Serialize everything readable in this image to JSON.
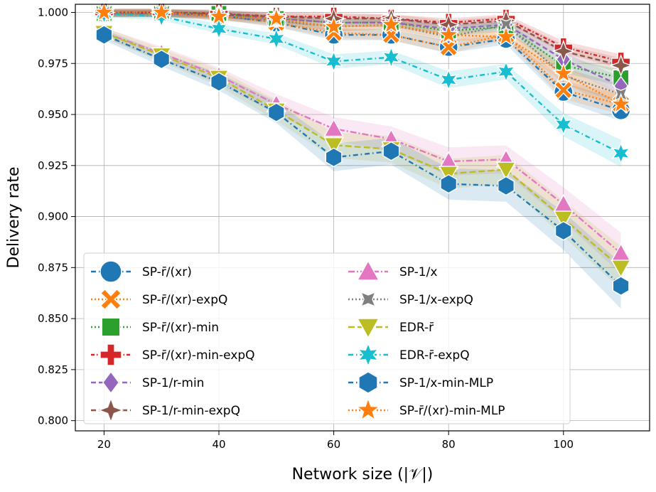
{
  "chart_data": {
    "type": "line",
    "xlabel": "Network size (|𝒱|)",
    "ylabel": "Delivery rate",
    "xlim": [
      15,
      115
    ],
    "ylim": [
      0.795,
      1.004
    ],
    "xticks": [
      20,
      40,
      60,
      80,
      100
    ],
    "yticks": [
      0.8,
      0.825,
      0.85,
      0.875,
      0.9,
      0.925,
      0.95,
      0.975,
      1.0
    ],
    "ytick_labels": [
      "0.800",
      "0.825",
      "0.850",
      "0.875",
      "0.900",
      "0.925",
      "0.950",
      "0.975",
      "1.000"
    ],
    "grid": true,
    "legend_position": "lower-left",
    "x": [
      20,
      30,
      40,
      50,
      60,
      70,
      80,
      90,
      100,
      110
    ],
    "series": [
      {
        "name": "SP-r̄/(xr)",
        "color": "#1f77b4",
        "marker": "circle",
        "dash": "7,4,1.5,4",
        "values": [
          0.9995,
          0.9995,
          0.9985,
          0.995,
          0.989,
          0.989,
          0.983,
          0.987,
          0.961,
          0.952
        ]
      },
      {
        "name": "SP-r̄/(xr)-expQ",
        "color": "#ff7f0e",
        "marker": "x",
        "dash": "2,3",
        "values": [
          0.9995,
          0.9995,
          0.9985,
          0.995,
          0.99,
          0.989,
          0.983,
          0.989,
          0.962,
          0.955
        ]
      },
      {
        "name": "SP-r̄/(xr)-min",
        "color": "#2ca02c",
        "marker": "square",
        "dash": "2,3",
        "values": [
          0.9995,
          0.9995,
          0.9995,
          0.997,
          0.995,
          0.995,
          0.991,
          0.993,
          0.974,
          0.968
        ]
      },
      {
        "name": "SP-r̄/(xr)-min-expQ",
        "color": "#d62728",
        "marker": "plus",
        "dash": "5,3,1.5,3",
        "values": [
          1.0,
          1.0,
          0.9995,
          0.998,
          0.998,
          0.997,
          0.995,
          0.997,
          0.983,
          0.976
        ]
      },
      {
        "name": "SP-1/r-min",
        "color": "#9467bd",
        "marker": "diamond",
        "dash": "7,4",
        "values": [
          0.9995,
          0.9995,
          0.999,
          0.997,
          0.995,
          0.995,
          0.992,
          0.994,
          0.977,
          0.964
        ]
      },
      {
        "name": "SP-1/r-min-expQ",
        "color": "#8c564b",
        "marker": "star4",
        "dash": "7,4",
        "values": [
          1.0,
          1.0,
          0.999,
          0.998,
          0.997,
          0.997,
          0.994,
          0.996,
          0.981,
          0.974
        ]
      },
      {
        "name": "SP-1/x",
        "color": "#e377c2",
        "marker": "triangle-up",
        "dash": "9,3,2,3",
        "values": [
          0.99,
          0.98,
          0.969,
          0.955,
          0.943,
          0.938,
          0.927,
          0.928,
          0.906,
          0.882
        ]
      },
      {
        "name": "SP-1/x-expQ",
        "color": "#7f7f7f",
        "marker": "star-pin",
        "dash": "2,3",
        "values": [
          1.0,
          1.0,
          0.998,
          0.996,
          0.993,
          0.994,
          0.988,
          0.994,
          0.969,
          0.96
        ]
      },
      {
        "name": "EDR-r̄",
        "color": "#bcbd22",
        "marker": "triangle-down",
        "dash": "9,4",
        "values": [
          0.99,
          0.979,
          0.968,
          0.952,
          0.935,
          0.933,
          0.921,
          0.923,
          0.899,
          0.875
        ]
      },
      {
        "name": "EDR-r̄-expQ",
        "color": "#17becf",
        "marker": "star6",
        "dash": "7,4,1.5,4",
        "values": [
          0.9995,
          0.998,
          0.992,
          0.987,
          0.976,
          0.978,
          0.967,
          0.971,
          0.945,
          0.931
        ]
      },
      {
        "name": "SP-1/x-min-MLP",
        "color": "#1f77b4",
        "marker": "hexagon",
        "dash": "7,4,1.5,4",
        "values": [
          0.989,
          0.977,
          0.966,
          0.951,
          0.929,
          0.932,
          0.916,
          0.915,
          0.893,
          0.866
        ]
      },
      {
        "name": "SP-r̄/(xr)-min-MLP",
        "color": "#ff7f0e",
        "marker": "star5",
        "dash": "2,3",
        "values": [
          1.0,
          1.0,
          0.998,
          0.997,
          0.993,
          0.994,
          0.989,
          0.988,
          0.97,
          0.955
        ]
      }
    ]
  }
}
